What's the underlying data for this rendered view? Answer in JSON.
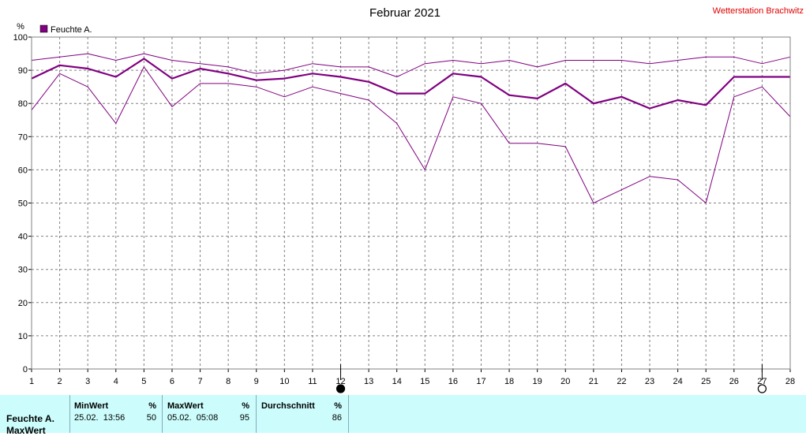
{
  "header": {
    "title": "Februar 2021",
    "station": "Wetterstation Brachwitz"
  },
  "chart_data": {
    "type": "line",
    "title": "Februar 2021",
    "unit_label": "%",
    "x": [
      1,
      2,
      3,
      4,
      5,
      6,
      7,
      8,
      9,
      10,
      11,
      12,
      13,
      14,
      15,
      16,
      17,
      18,
      19,
      20,
      21,
      22,
      23,
      24,
      25,
      26,
      27,
      28
    ],
    "ylim": [
      0,
      100
    ],
    "yticks": [
      0,
      10,
      20,
      30,
      40,
      50,
      60,
      70,
      80,
      90,
      100
    ],
    "xticks": [
      1,
      2,
      3,
      4,
      5,
      6,
      7,
      8,
      9,
      10,
      11,
      12,
      13,
      14,
      15,
      16,
      17,
      18,
      19,
      20,
      21,
      22,
      23,
      24,
      25,
      26,
      27,
      28
    ],
    "grid": true,
    "legend": "top-left",
    "series": [
      {
        "name": "Feuchte A.",
        "role": "avg",
        "color": "#800080",
        "values": [
          87.5,
          91.5,
          90.5,
          88,
          93.5,
          87.5,
          90.5,
          89,
          87,
          87.5,
          89,
          88,
          86.5,
          83,
          83,
          89,
          88,
          82.5,
          81.5,
          86,
          80,
          82,
          78.5,
          81,
          79.5,
          88,
          88,
          88
        ]
      },
      {
        "role": "max",
        "color": "#800080",
        "values": [
          93,
          94,
          95,
          93,
          95,
          93,
          92,
          91,
          89,
          90,
          92,
          91,
          91,
          88,
          92,
          93,
          92,
          93,
          91,
          93,
          93,
          93,
          92,
          93,
          94,
          94,
          92,
          94
        ]
      },
      {
        "role": "min",
        "color": "#800080",
        "values": [
          78,
          89,
          85,
          74,
          91,
          79,
          86,
          86,
          85,
          82,
          85,
          83,
          81,
          74,
          60,
          82,
          80,
          68,
          68,
          67,
          50,
          54,
          58,
          57,
          50,
          82,
          85,
          76
        ]
      }
    ],
    "moon_markers": [
      {
        "day": 12,
        "phase": "new-moon"
      },
      {
        "day": 27,
        "phase": "full-moon"
      }
    ]
  },
  "stats": {
    "row_label_1": "Feuchte A.",
    "row_label_2": "MaxWert",
    "min_header": "MinWert",
    "min_unit": "%",
    "min_date": "25.02.  13:56",
    "min_value": "50",
    "max_header": "MaxWert",
    "max_unit": "%",
    "max_date": "05.02.  05:08",
    "max_value": "95",
    "avg_header": "Durchschnitt",
    "avg_unit": "%",
    "avg_value": "86"
  }
}
